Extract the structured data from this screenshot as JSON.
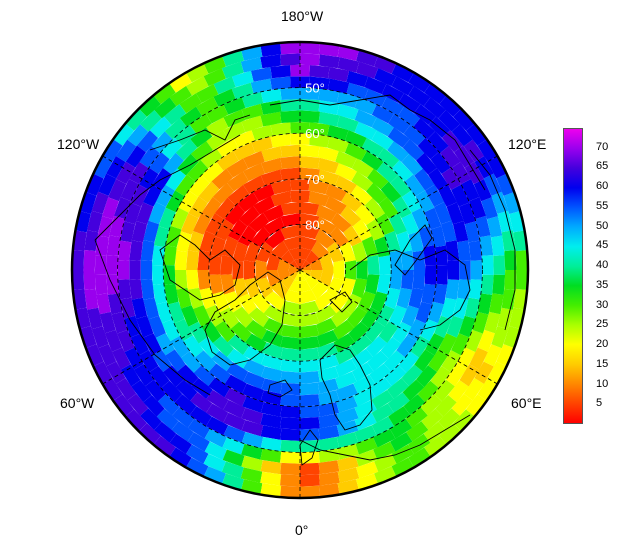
{
  "map": {
    "projection": "north-polar-stereographic",
    "longitude_labels": {
      "top": "180°W",
      "upper_left": "120°W",
      "upper_right": "120°E",
      "lower_left": "60°W",
      "lower_right": "60°E",
      "bottom": "0°"
    },
    "latitude_labels": [
      "50°",
      "60°",
      "70°",
      "80°"
    ],
    "graticule_lats": [
      50,
      60,
      70,
      80
    ],
    "graticule_lons": [
      0,
      60,
      120,
      180,
      240,
      300
    ]
  },
  "colorbar": {
    "ticks": [
      "70",
      "65",
      "60",
      "55",
      "50",
      "45",
      "40",
      "35",
      "30",
      "25",
      "20",
      "15",
      "10",
      "5"
    ],
    "min": 0,
    "max": 75,
    "colors": [
      "#ff0000",
      "#ff4400",
      "#ff8800",
      "#ffcc00",
      "#ffff00",
      "#aaff00",
      "#44ee00",
      "#00dd22",
      "#00ee99",
      "#00eeee",
      "#00aaff",
      "#0055ff",
      "#0000ee",
      "#4400dd",
      "#9900ee",
      "#ee00ee"
    ]
  },
  "field": {
    "description_values": "gridded field values (0-75) by latitude band and longitude",
    "value_grid": {
      "lon_centers_deg": [
        0,
        30,
        60,
        90,
        120,
        150,
        180,
        210,
        240,
        270,
        300,
        330
      ],
      "lat_bands": [
        {
          "lat": 85,
          "values": [
            20,
            22,
            18,
            15,
            10,
            8,
            6,
            5,
            8,
            12,
            15,
            18
          ]
        },
        {
          "lat": 78,
          "values": [
            30,
            25,
            20,
            30,
            15,
            10,
            5,
            3,
            4,
            8,
            20,
            25
          ]
        },
        {
          "lat": 70,
          "values": [
            45,
            40,
            35,
            50,
            25,
            15,
            8,
            4,
            5,
            5,
            25,
            40
          ]
        },
        {
          "lat": 62,
          "values": [
            55,
            45,
            50,
            60,
            45,
            30,
            20,
            15,
            20,
            30,
            40,
            60
          ]
        },
        {
          "lat": 54,
          "values": [
            60,
            40,
            30,
            55,
            60,
            50,
            40,
            25,
            60,
            65,
            55,
            65
          ]
        },
        {
          "lat": 47,
          "values": [
            5,
            35,
            15,
            40,
            65,
            55,
            65,
            30,
            65,
            70,
            60,
            50
          ]
        },
        {
          "lat": 42,
          "values": [
            8,
            30,
            20,
            30,
            60,
            60,
            70,
            20,
            55,
            65,
            65,
            60
          ]
        }
      ]
    }
  }
}
